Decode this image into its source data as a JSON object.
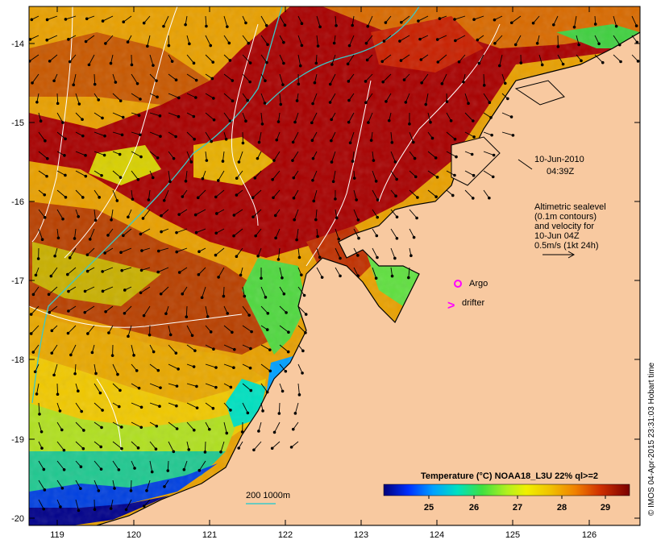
{
  "map": {
    "lon_ticks": [
      "119",
      "120",
      "121",
      "122",
      "123",
      "124",
      "125",
      "126"
    ],
    "lat_ticks": [
      "-14",
      "-15",
      "-16",
      "-17",
      "-18",
      "-19",
      "-20"
    ],
    "colors": {
      "land": "#f8c9a0",
      "coastline": "#000000",
      "contour": "#ffffff",
      "isobath": "#3ac9c9",
      "arrow": "#000000",
      "marker": "#ff00ff"
    }
  },
  "annotations": {
    "date": "10-Jun-2010",
    "time": "04:39Z",
    "altimetry_lines": [
      "Altimetric sealevel",
      "(0.1m contours)",
      "and velocity for",
      "10-Jun 04Z",
      "0.5m/s (1kt 24h)"
    ],
    "argo_label": "Argo",
    "drifter_label": "drifter",
    "drifter_symbol": ">",
    "depth_legend": "200  1000m"
  },
  "colorbar": {
    "title": "Temperature (°C) NOAA18_L3U 22% ql>=2",
    "ticks": [
      "25",
      "26",
      "27",
      "28",
      "29"
    ],
    "colors": [
      "#00007a",
      "#0030ff",
      "#00a0ff",
      "#00e0c0",
      "#40e040",
      "#b0f020",
      "#f0f000",
      "#f0c000",
      "#f08000",
      "#e04000",
      "#b00000",
      "#7a0000"
    ]
  },
  "credit": "© IMOS 04-Apr-2015 23:31:03 Hobart time"
}
